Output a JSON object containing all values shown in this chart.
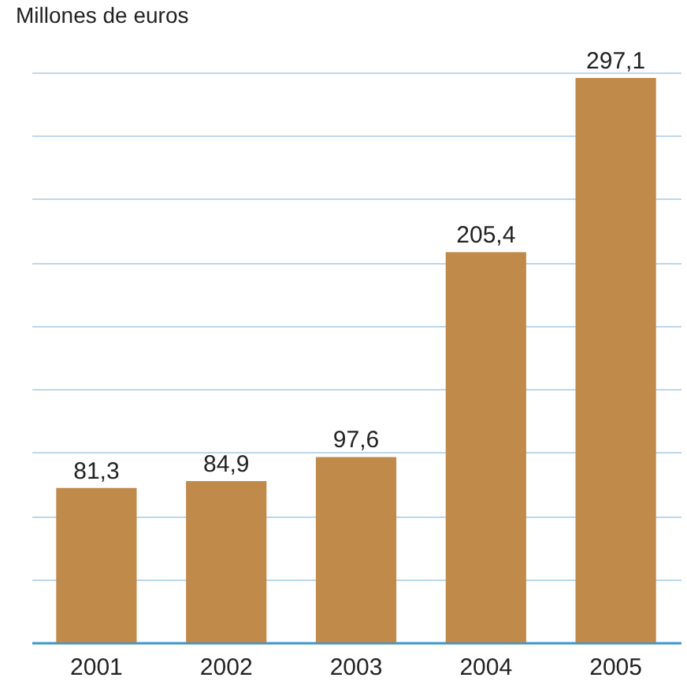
{
  "chart_data": {
    "type": "bar",
    "title": "Millones de euros",
    "categories": [
      "2001",
      "2002",
      "2003",
      "2004",
      "2005"
    ],
    "values": [
      81.3,
      84.9,
      97.6,
      205.4,
      297.1
    ],
    "color": "#c08a4a",
    "value_labels": [
      "81,3",
      "84,9",
      "97,6",
      "205,4",
      "297,1"
    ],
    "ylim": [
      0,
      300
    ],
    "yticks": [
      {
        "value": 0,
        "label": null
      },
      {
        "value": 33.3,
        "label": null
      },
      {
        "value": 66.7,
        "label": null
      },
      {
        "value": 100,
        "label": null
      },
      {
        "value": 133.3,
        "label": null
      },
      {
        "value": 166.7,
        "label": null
      },
      {
        "value": 200,
        "label": null
      },
      {
        "value": 233.3,
        "label": null
      },
      {
        "value": 266.7,
        "label": null
      },
      {
        "value": 300,
        "label": null
      }
    ],
    "grid": "y",
    "tick_labels": "x"
  }
}
